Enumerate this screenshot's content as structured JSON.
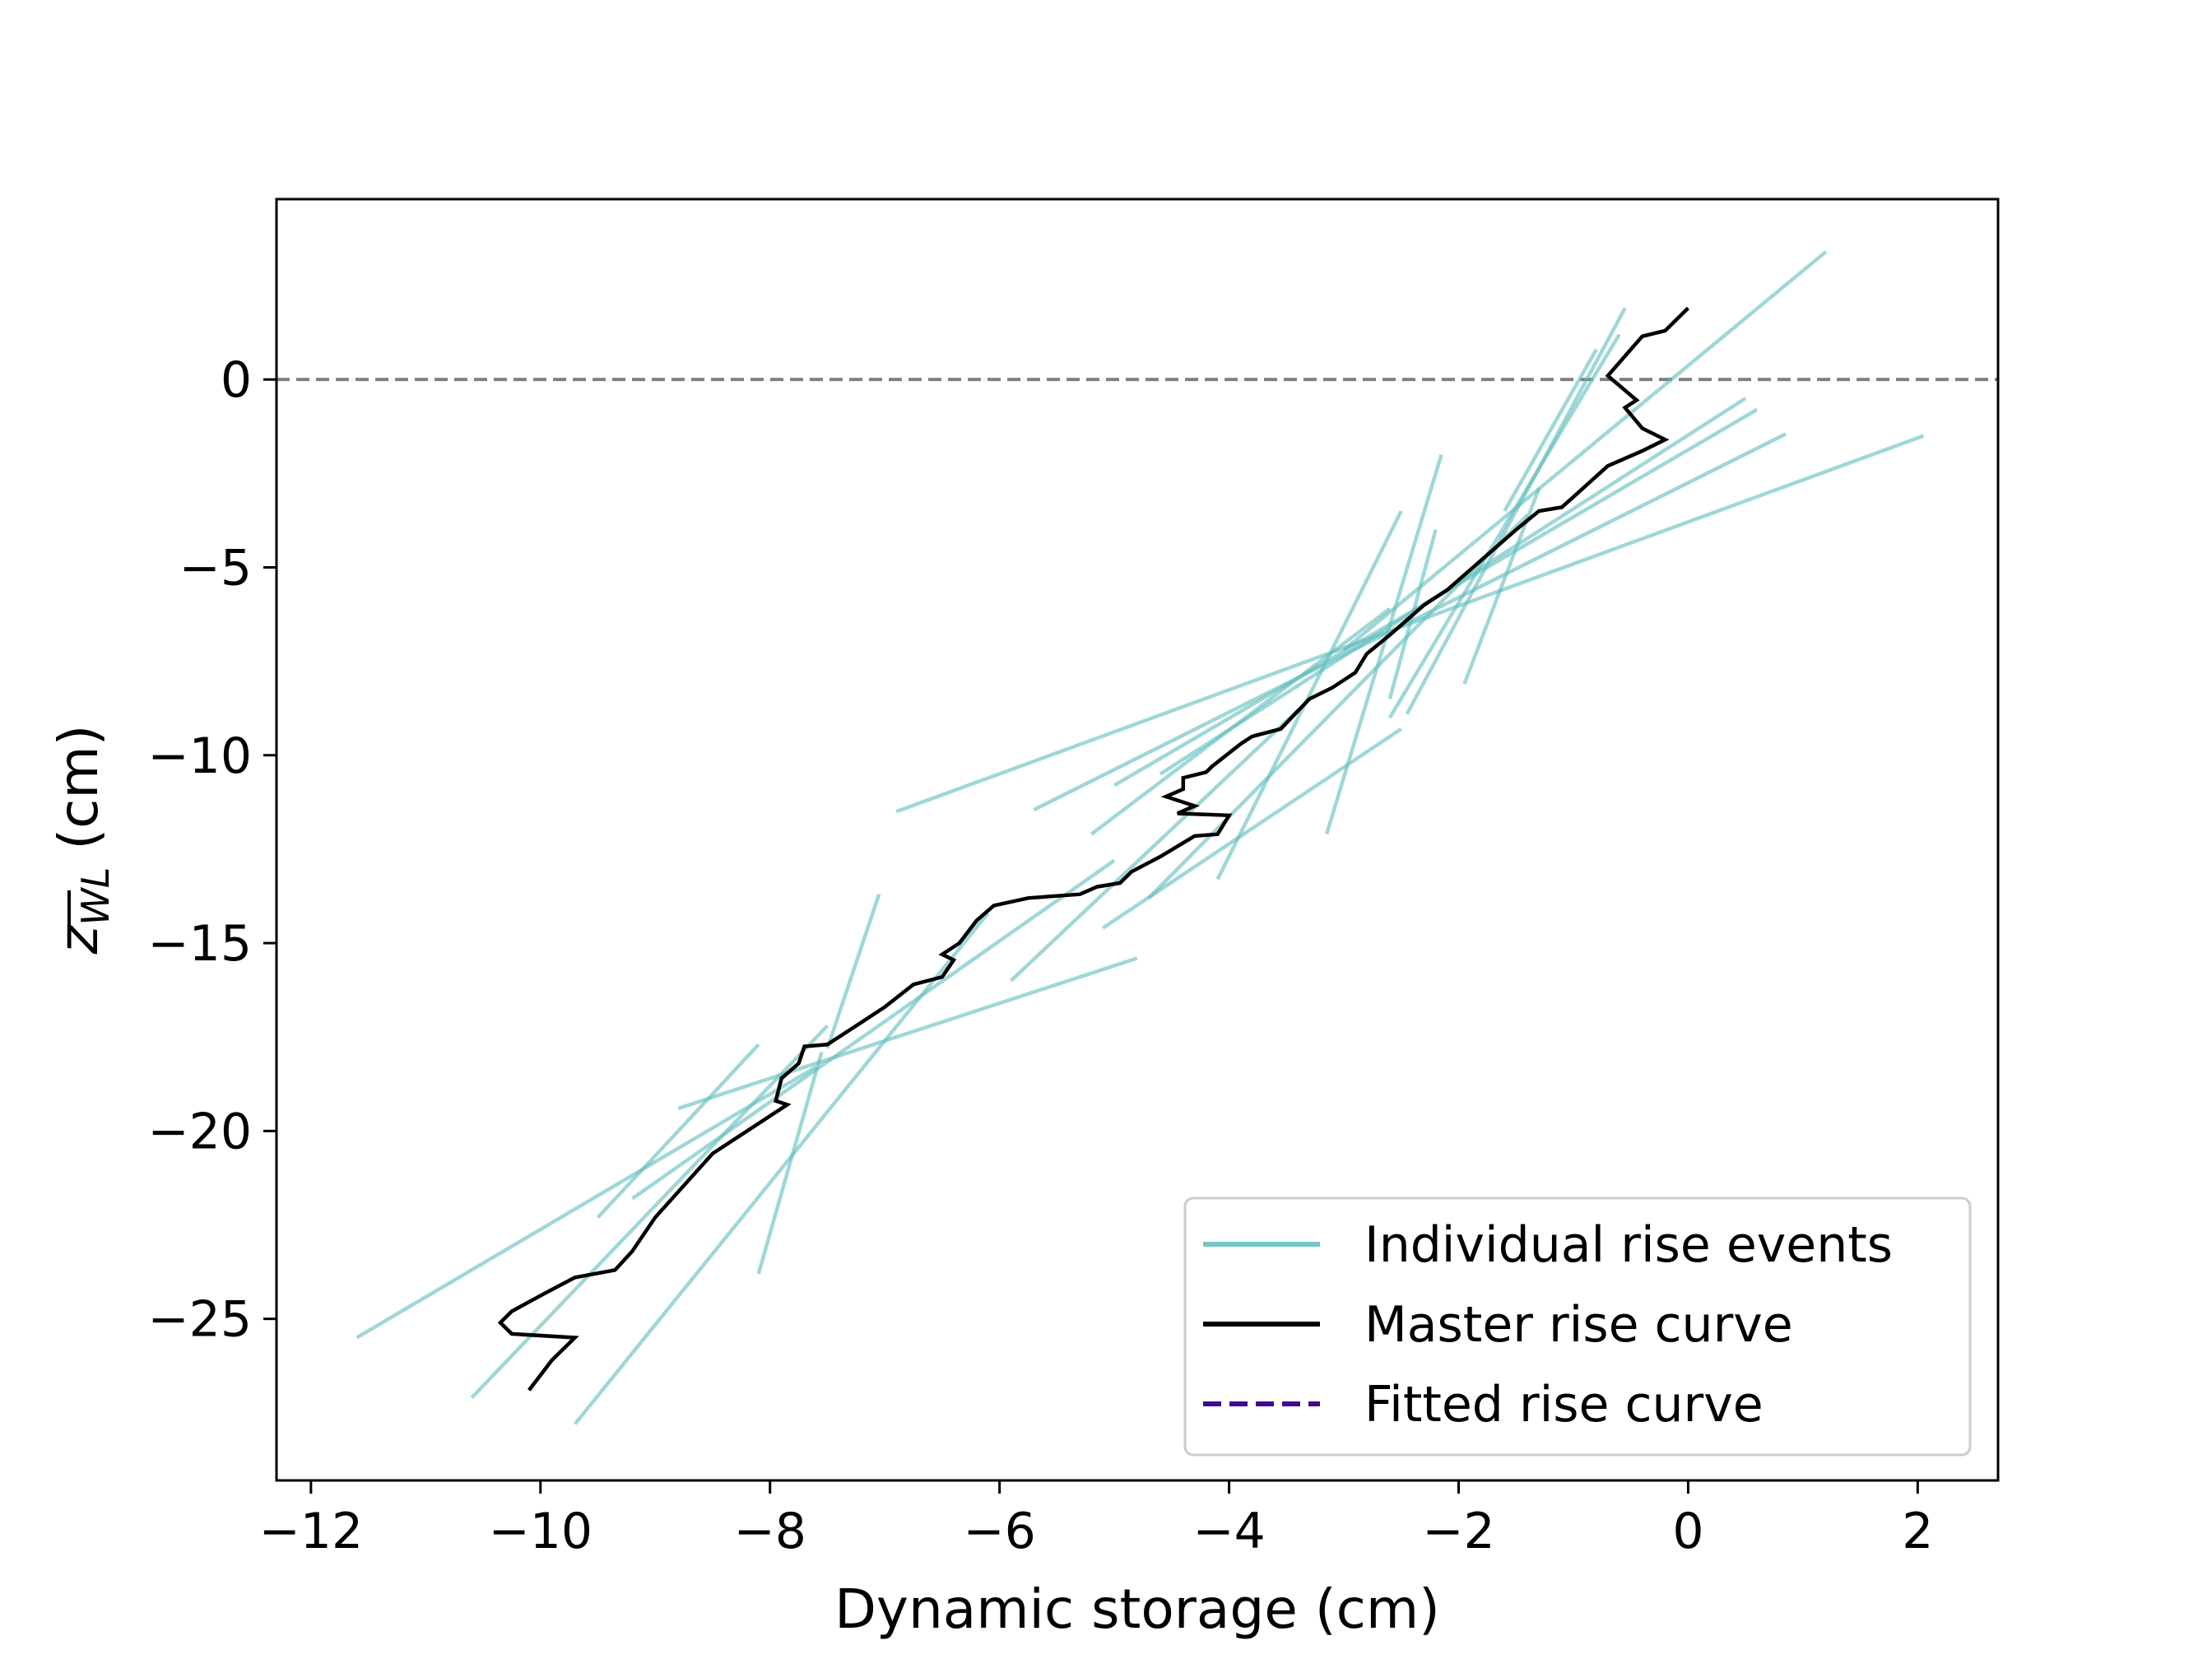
{
  "chart_data": {
    "type": "line",
    "title": "",
    "xlabel": "Dynamic storage (cm)",
    "ylabel_main": "z",
    "ylabel_subscript": "WL",
    "ylabel_suffix": " (cm)",
    "xlim": [
      -12.3,
      2.7
    ],
    "ylim": [
      -29.3,
      4.8
    ],
    "xticks": [
      -12,
      -10,
      -8,
      -6,
      -4,
      -2,
      0,
      2
    ],
    "xtick_labels": [
      "−12",
      "−10",
      "−8",
      "−6",
      "−4",
      "−2",
      "0",
      "2"
    ],
    "yticks": [
      0,
      -5,
      -10,
      -15,
      -20,
      -25
    ],
    "ytick_labels": [
      "0",
      "−5",
      "−10",
      "−15",
      "−20",
      "−25"
    ],
    "grid": false,
    "legend_position": "lower right",
    "reference_line": {
      "y": 0,
      "color": "#808080",
      "style": "dashed"
    },
    "colors": {
      "individual": "#5fbcbc",
      "master": "#000000",
      "fitted": "#3f0a8f"
    },
    "legend": [
      {
        "label": "Individual rise events",
        "color": "#5fbcbc",
        "style": "solid"
      },
      {
        "label": "Master rise curve",
        "color": "#000000",
        "style": "solid"
      },
      {
        "label": "Fitted rise curve",
        "color": "#3f0a8f",
        "style": "dashed"
      }
    ],
    "series": [
      {
        "name": "Individual rise events",
        "segments": [
          [
            [
              -0.55,
              1.9
            ],
            [
              -2.45,
              -8.9
            ]
          ],
          [
            [
              -0.6,
              1.2
            ],
            [
              -2.6,
              -9.0
            ]
          ],
          [
            [
              -0.8,
              0.8
            ],
            [
              -1.6,
              -3.5
            ]
          ],
          [
            [
              1.2,
              3.4
            ],
            [
              -3.0,
              -7.2
            ]
          ],
          [
            [
              0.5,
              -0.5
            ],
            [
              -4.6,
              -10.5
            ]
          ],
          [
            [
              0.6,
              -0.8
            ],
            [
              -5.0,
              -10.8
            ]
          ],
          [
            [
              0.85,
              -1.45
            ],
            [
              -5.7,
              -11.45
            ]
          ],
          [
            [
              2.05,
              -1.5
            ],
            [
              -6.9,
              -11.5
            ]
          ],
          [
            [
              -2.15,
              -2.0
            ],
            [
              -3.15,
              -12.1
            ]
          ],
          [
            [
              -2.2,
              -4.0
            ],
            [
              -2.6,
              -8.5
            ]
          ],
          [
            [
              -1.3,
              -2.9
            ],
            [
              -1.95,
              -8.1
            ]
          ],
          [
            [
              -2.5,
              -9.3
            ],
            [
              -5.1,
              -14.6
            ]
          ],
          [
            [
              -3.4,
              -8.8
            ],
            [
              -5.9,
              -16.0
            ]
          ],
          [
            [
              -2.5,
              -3.5
            ],
            [
              -4.1,
              -13.3
            ]
          ],
          [
            [
              -1.4,
              -3.6
            ],
            [
              -4.7,
              -13.8
            ]
          ],
          [
            [
              -7.05,
              -13.7
            ],
            [
              -7.5,
              -17.8
            ]
          ],
          [
            [
              -4.8,
              -15.4
            ],
            [
              -8.8,
              -19.4
            ]
          ],
          [
            [
              -5.0,
              -12.8
            ],
            [
              -9.2,
              -21.8
            ]
          ],
          [
            [
              -8.1,
              -17.7
            ],
            [
              -9.5,
              -22.3
            ]
          ],
          [
            [
              -7.5,
              -17.2
            ],
            [
              -10.6,
              -27.1
            ]
          ],
          [
            [
              -7.55,
              -17.9
            ],
            [
              -8.1,
              -23.8
            ]
          ],
          [
            [
              -6.1,
              -14.2
            ],
            [
              -9.7,
              -27.8
            ]
          ],
          [
            [
              -7.6,
              -18.3
            ],
            [
              -11.6,
              -25.5
            ]
          ],
          [
            [
              -2.6,
              -6.1
            ],
            [
              -5.2,
              -12.1
            ]
          ]
        ]
      },
      {
        "name": "Master rise curve",
        "points": [
          [
            0.0,
            1.9
          ],
          [
            -0.2,
            1.3
          ],
          [
            -0.4,
            1.15
          ],
          [
            -0.7,
            0.1
          ],
          [
            -0.45,
            -0.55
          ],
          [
            -0.55,
            -0.75
          ],
          [
            -0.4,
            -1.3
          ],
          [
            -0.2,
            -1.6
          ],
          [
            -0.4,
            -1.9
          ],
          [
            -0.7,
            -2.3
          ],
          [
            -1.1,
            -3.4
          ],
          [
            -1.3,
            -3.5
          ],
          [
            -1.5,
            -4.0
          ],
          [
            -2.1,
            -5.6
          ],
          [
            -2.3,
            -6.0
          ],
          [
            -2.6,
            -6.8
          ],
          [
            -2.8,
            -7.3
          ],
          [
            -2.9,
            -7.8
          ],
          [
            -3.1,
            -8.2
          ],
          [
            -3.3,
            -8.5
          ],
          [
            -3.55,
            -9.3
          ],
          [
            -3.8,
            -9.5
          ],
          [
            -3.9,
            -9.7
          ],
          [
            -4.15,
            -10.3
          ],
          [
            -4.2,
            -10.45
          ],
          [
            -4.4,
            -10.6
          ],
          [
            -4.4,
            -10.9
          ],
          [
            -4.55,
            -11.1
          ],
          [
            -4.3,
            -11.35
          ],
          [
            -4.45,
            -11.55
          ],
          [
            -4.0,
            -11.6
          ],
          [
            -4.1,
            -12.1
          ],
          [
            -4.3,
            -12.15
          ],
          [
            -4.6,
            -12.7
          ],
          [
            -4.85,
            -13.1
          ],
          [
            -4.95,
            -13.4
          ],
          [
            -5.15,
            -13.5
          ],
          [
            -5.3,
            -13.7
          ],
          [
            -5.75,
            -13.8
          ],
          [
            -6.05,
            -14.0
          ],
          [
            -6.2,
            -14.4
          ],
          [
            -6.35,
            -15.0
          ],
          [
            -6.5,
            -15.3
          ],
          [
            -6.4,
            -15.45
          ],
          [
            -6.5,
            -15.9
          ],
          [
            -6.75,
            -16.1
          ],
          [
            -7.0,
            -16.7
          ],
          [
            -7.2,
            -17.1
          ],
          [
            -7.5,
            -17.7
          ],
          [
            -7.7,
            -17.75
          ],
          [
            -7.75,
            -18.2
          ],
          [
            -7.9,
            -18.6
          ],
          [
            -7.95,
            -19.2
          ],
          [
            -7.85,
            -19.3
          ],
          [
            -8.1,
            -19.8
          ],
          [
            -8.5,
            -20.6
          ],
          [
            -9.0,
            -22.3
          ],
          [
            -9.2,
            -23.2
          ],
          [
            -9.35,
            -23.7
          ],
          [
            -9.7,
            -23.9
          ],
          [
            -9.95,
            -24.3
          ],
          [
            -10.25,
            -24.8
          ],
          [
            -10.35,
            -25.1
          ],
          [
            -10.25,
            -25.4
          ],
          [
            -9.7,
            -25.5
          ],
          [
            -9.9,
            -26.1
          ],
          [
            -10.1,
            -26.9
          ]
        ]
      },
      {
        "name": "Fitted rise curve",
        "points": []
      }
    ]
  }
}
